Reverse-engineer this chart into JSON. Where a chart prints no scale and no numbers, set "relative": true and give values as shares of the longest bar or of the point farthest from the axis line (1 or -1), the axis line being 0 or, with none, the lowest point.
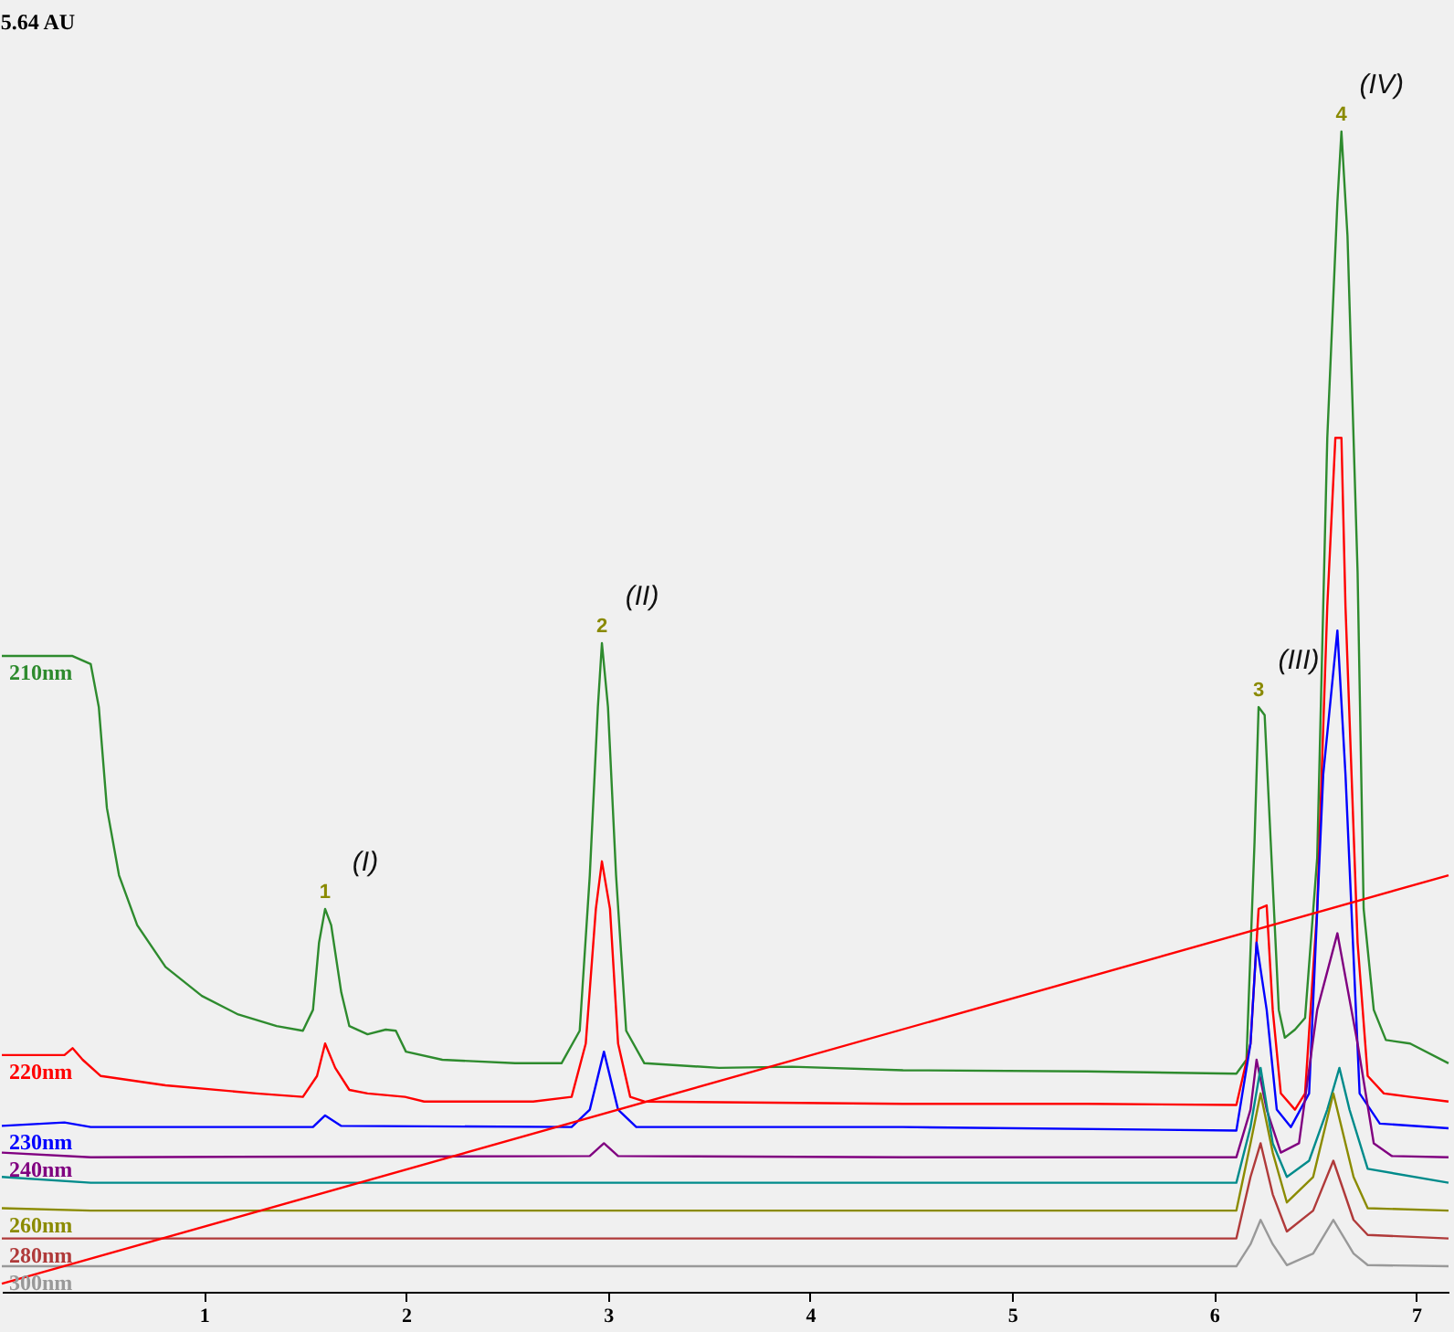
{
  "chart_data": {
    "type": "line",
    "relative": true,
    "xlim": [
      0,
      7.16
    ],
    "xticks": [
      {
        "value": 1,
        "label": "1"
      },
      {
        "value": 2,
        "label": "2"
      },
      {
        "value": 3,
        "label": "3"
      },
      {
        "value": 4,
        "label": "4"
      },
      {
        "value": 5,
        "label": "5"
      },
      {
        "value": 6,
        "label": "6"
      },
      {
        "value": 7,
        "label": "7"
      }
    ],
    "grid": false,
    "legend": false,
    "tick_labels": "x",
    "marker": "none",
    "line_style": "solid",
    "annotations": [
      "5.64 AU",
      {
        "text": "1",
        "x": 1.6,
        "y": 0.33
      },
      {
        "text": "2",
        "x": 2.97,
        "y": 0.559
      },
      {
        "text": "3",
        "x": 6.22,
        "y": 0.504
      },
      {
        "text": "4",
        "x": 6.63,
        "y": 1
      },
      {
        "text": "(I)",
        "x": 1.6,
        "y": 0.33
      },
      {
        "text": "(II)",
        "x": 2.97,
        "y": 0.559
      },
      {
        "text": "(III)",
        "x": 6.22,
        "y": 0.504
      },
      {
        "text": "(IV)",
        "x": 6.63,
        "y": 1
      }
    ],
    "series": [
      {
        "name": "210nm",
        "color": "#2e8b2e",
        "x": [
          0,
          0.35,
          0.44,
          0.48,
          0.52,
          0.58,
          0.67,
          0.81,
          0.99,
          1.17,
          1.36,
          1.49,
          1.54,
          1.57,
          1.6,
          1.63,
          1.68,
          1.72,
          1.81,
          1.9,
          1.95,
          2.0,
          2.18,
          2.54,
          2.77,
          2.86,
          2.91,
          2.95,
          2.97,
          3.0,
          3.04,
          3.09,
          3.18,
          3.55,
          3.91,
          4.46,
          5.37,
          6.11,
          6.16,
          6.2,
          6.22,
          6.25,
          6.28,
          6.32,
          6.35,
          6.4,
          6.45,
          6.51,
          6.56,
          6.61,
          6.63,
          6.66,
          6.71,
          6.74,
          6.79,
          6.85,
          6.97,
          7.16
        ],
        "values": [
          0.548,
          0.548,
          0.541,
          0.504,
          0.417,
          0.359,
          0.316,
          0.28,
          0.255,
          0.239,
          0.229,
          0.225,
          0.243,
          0.301,
          0.33,
          0.316,
          0.258,
          0.229,
          0.222,
          0.226,
          0.225,
          0.207,
          0.2,
          0.197,
          0.197,
          0.225,
          0.359,
          0.504,
          0.559,
          0.504,
          0.359,
          0.225,
          0.197,
          0.193,
          0.194,
          0.191,
          0.19,
          0.188,
          0.2,
          0.388,
          0.504,
          0.497,
          0.388,
          0.243,
          0.219,
          0.226,
          0.236,
          0.374,
          0.736,
          0.939,
          1,
          0.91,
          0.62,
          0.33,
          0.243,
          0.217,
          0.214,
          0.197
        ]
      },
      {
        "name": "220nm",
        "color": "#ff0000",
        "x": [
          0,
          0.31,
          0.35,
          0.4,
          0.49,
          0.81,
          1.26,
          1.49,
          1.56,
          1.6,
          1.65,
          1.72,
          1.81,
          1.995,
          2.09,
          2.63,
          2.82,
          2.89,
          2.94,
          2.97,
          3.01,
          3.05,
          3.11,
          3.18,
          4.46,
          5.37,
          6.11,
          6.18,
          6.22,
          6.26,
          6.29,
          6.33,
          6.4,
          6.45,
          6.51,
          6.56,
          6.6,
          6.63,
          6.65,
          6.71,
          6.76,
          6.84,
          6.97,
          7.16
        ],
        "values": [
          0.204,
          0.204,
          0.21,
          0.2,
          0.186,
          0.178,
          0.171,
          0.168,
          0.186,
          0.214,
          0.193,
          0.174,
          0.171,
          0.168,
          0.164,
          0.164,
          0.168,
          0.214,
          0.33,
          0.371,
          0.33,
          0.214,
          0.168,
          0.164,
          0.162,
          0.162,
          0.161,
          0.214,
          0.33,
          0.333,
          0.243,
          0.171,
          0.157,
          0.171,
          0.33,
          0.591,
          0.736,
          0.736,
          0.591,
          0.301,
          0.186,
          0.171,
          0.168,
          0.164
        ]
      },
      {
        "name": "230nm",
        "color": "#0000ff",
        "x": [
          0,
          0.31,
          0.44,
          1.54,
          1.6,
          1.68,
          2.82,
          2.91,
          2.98,
          3.05,
          3.14,
          4.46,
          6.11,
          6.18,
          6.21,
          6.26,
          6.31,
          6.38,
          6.47,
          6.54,
          6.61,
          6.65,
          6.72,
          6.82,
          7.16
        ],
        "values": [
          0.143,
          0.146,
          0.142,
          0.142,
          0.152,
          0.143,
          0.142,
          0.157,
          0.207,
          0.157,
          0.142,
          0.142,
          0.139,
          0.214,
          0.301,
          0.243,
          0.157,
          0.142,
          0.171,
          0.446,
          0.57,
          0.446,
          0.171,
          0.145,
          0.141
        ]
      },
      {
        "name": "240nm",
        "color": "#800080",
        "x": [
          0,
          0.44,
          2.91,
          2.98,
          3.05,
          4.46,
          6.11,
          6.18,
          6.21,
          6.26,
          6.33,
          6.42,
          6.51,
          6.61,
          6.71,
          6.79,
          6.88,
          7.16
        ],
        "values": [
          0.12,
          0.116,
          0.117,
          0.128,
          0.117,
          0.116,
          0.116,
          0.157,
          0.2,
          0.157,
          0.12,
          0.128,
          0.243,
          0.309,
          0.214,
          0.128,
          0.117,
          0.116
        ]
      },
      {
        "name": null,
        "color": "#008b8b",
        "x": [
          0,
          0.44,
          6.11,
          6.18,
          6.23,
          6.29,
          6.36,
          6.47,
          6.56,
          6.62,
          6.67,
          6.76,
          7.16
        ],
        "values": [
          0.099,
          0.094,
          0.094,
          0.142,
          0.193,
          0.128,
          0.099,
          0.113,
          0.157,
          0.193,
          0.157,
          0.106,
          0.094
        ]
      },
      {
        "name": "260nm",
        "color": "#8b8b00",
        "x": [
          0,
          0.44,
          6.11,
          6.18,
          6.23,
          6.29,
          6.36,
          6.49,
          6.59,
          6.69,
          6.76,
          7.16
        ],
        "values": [
          0.072,
          0.07,
          0.07,
          0.128,
          0.171,
          0.12,
          0.077,
          0.099,
          0.171,
          0.099,
          0.072,
          0.07
        ]
      },
      {
        "name": "280nm",
        "color": "#b03a3a",
        "x": [
          0,
          6.11,
          6.18,
          6.23,
          6.29,
          6.36,
          6.49,
          6.59,
          6.69,
          6.76,
          7.16
        ],
        "values": [
          0.046,
          0.046,
          0.099,
          0.128,
          0.084,
          0.052,
          0.07,
          0.113,
          0.062,
          0.049,
          0.046
        ]
      },
      {
        "name": "300nm",
        "color": "#999999",
        "x": [
          0,
          6.11,
          6.18,
          6.23,
          6.29,
          6.36,
          6.49,
          6.59,
          6.69,
          6.76,
          7.16
        ],
        "values": [
          0.022,
          0.022,
          0.041,
          0.062,
          0.041,
          0.023,
          0.033,
          0.062,
          0.033,
          0.023,
          0.022
        ]
      },
      {
        "name": null,
        "color": "#ff0000",
        "x": [
          0,
          7.16
        ],
        "values": [
          0.007,
          0.359
        ]
      }
    ]
  }
}
